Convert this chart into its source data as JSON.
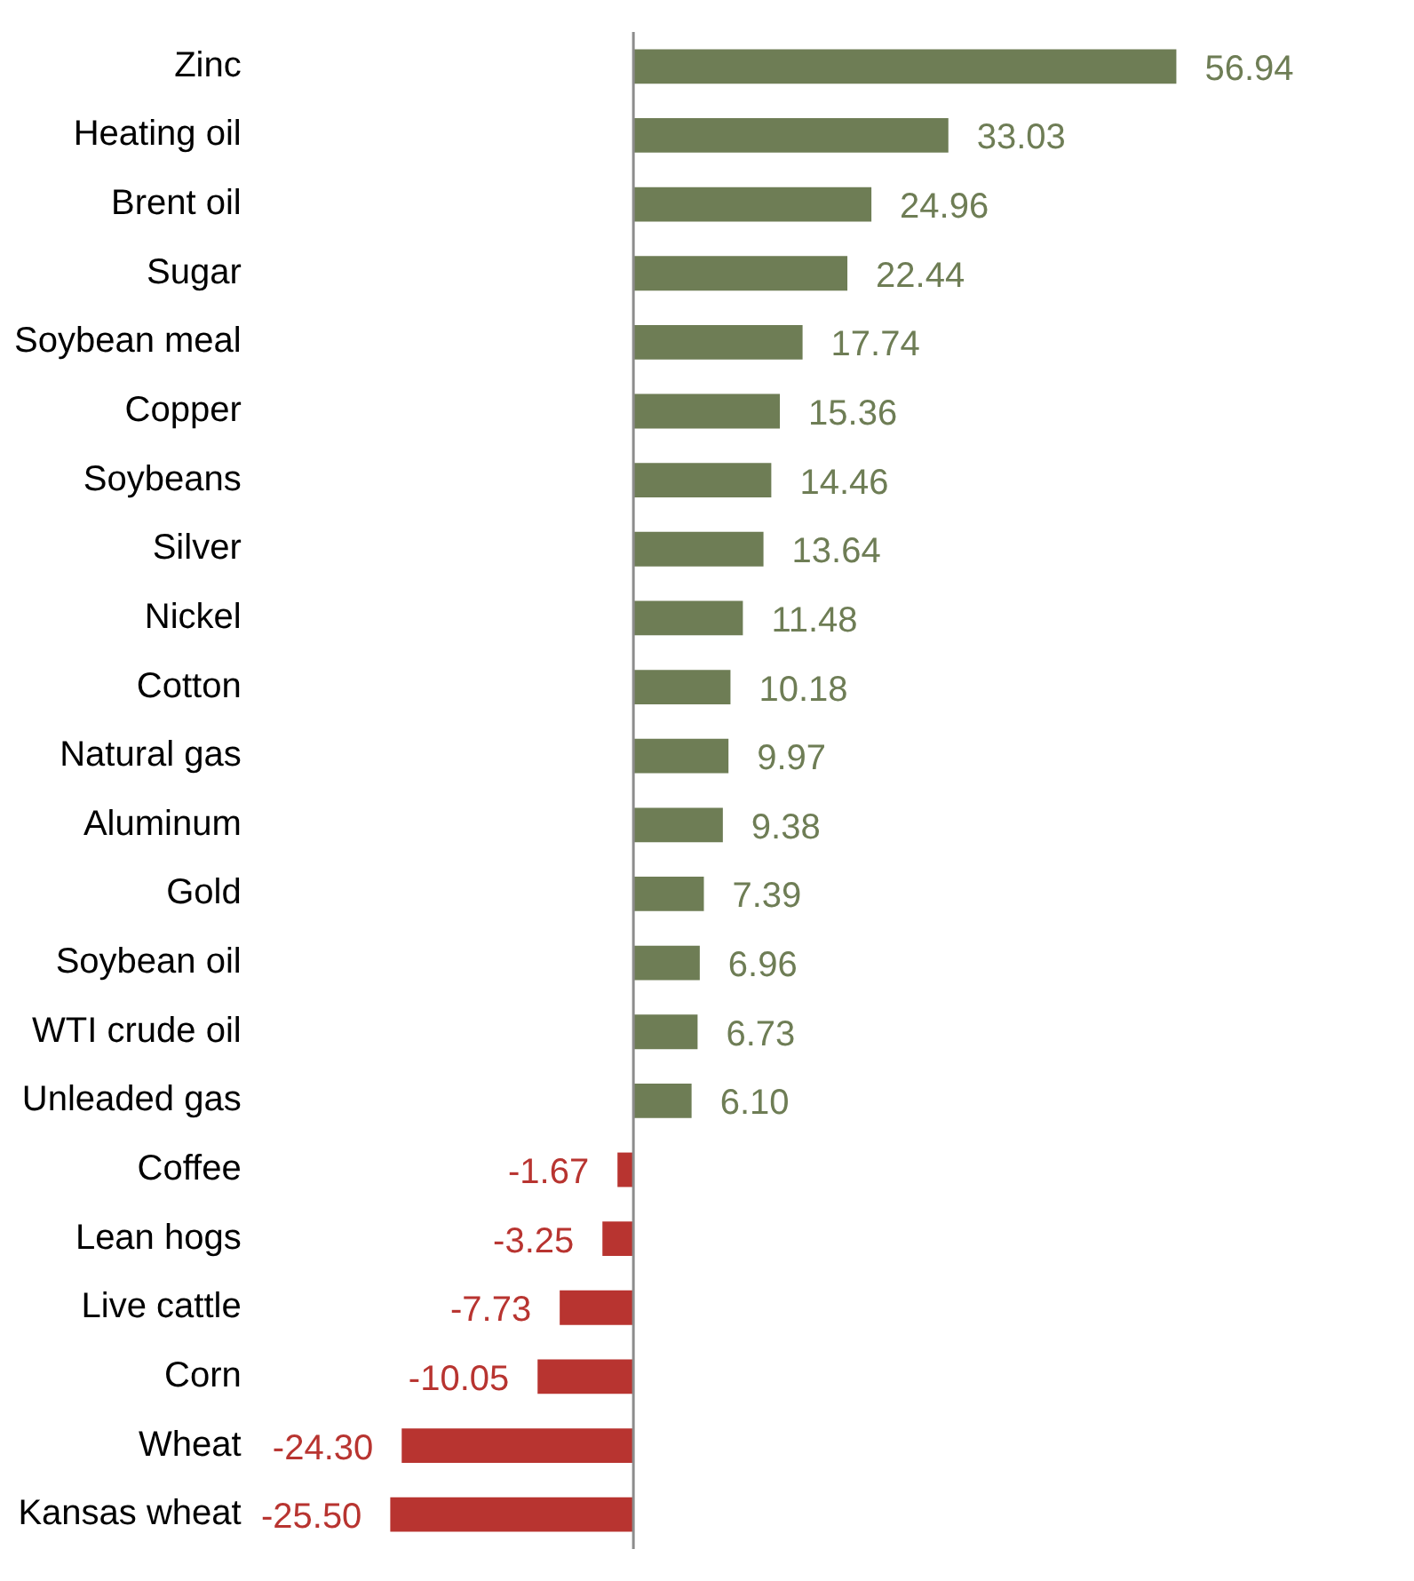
{
  "chart_data": {
    "type": "bar",
    "orientation": "horizontal",
    "categories": [
      "Zinc",
      "Heating oil",
      "Brent oil",
      "Sugar",
      "Soybean meal",
      "Copper",
      "Soybeans",
      "Silver",
      "Nickel",
      "Cotton",
      "Natural gas",
      "Aluminum",
      "Gold",
      "Soybean oil",
      "WTI crude oil",
      "Unleaded gas",
      "Coffee",
      "Lean hogs",
      "Live cattle",
      "Corn",
      "Wheat",
      "Kansas wheat"
    ],
    "values": [
      56.94,
      33.03,
      24.96,
      22.44,
      17.74,
      15.36,
      14.46,
      13.64,
      11.48,
      10.18,
      9.97,
      9.38,
      7.39,
      6.96,
      6.73,
      6.1,
      -1.67,
      -3.25,
      -7.73,
      -10.05,
      -24.3,
      -25.5
    ],
    "colors": [
      "#6e7d55",
      "#6e7d55",
      "#6e7d55",
      "#6e7d55",
      "#6e7d55",
      "#6e7d55",
      "#6e7d55",
      "#6e7d55",
      "#6e7d55",
      "#6e7d55",
      "#6e7d55",
      "#6e7d55",
      "#6e7d55",
      "#6e7d55",
      "#6e7d55",
      "#6e7d55",
      "#b83430",
      "#b83430",
      "#b83430",
      "#b83430",
      "#b83430",
      "#b83430"
    ],
    "value_labels": [
      "56.94",
      "33.03",
      "24.96",
      "22.44",
      "17.74",
      "15.36",
      "14.46",
      "13.64",
      "11.48",
      "10.18",
      "9.97",
      "9.38",
      "7.39",
      "6.96",
      "6.73",
      "6.10",
      "-1.67",
      "-3.25",
      "-7.73",
      "-10.05",
      "-24.30",
      "-25.50"
    ],
    "grid": false,
    "legend": false,
    "tick_labels": "y"
  }
}
